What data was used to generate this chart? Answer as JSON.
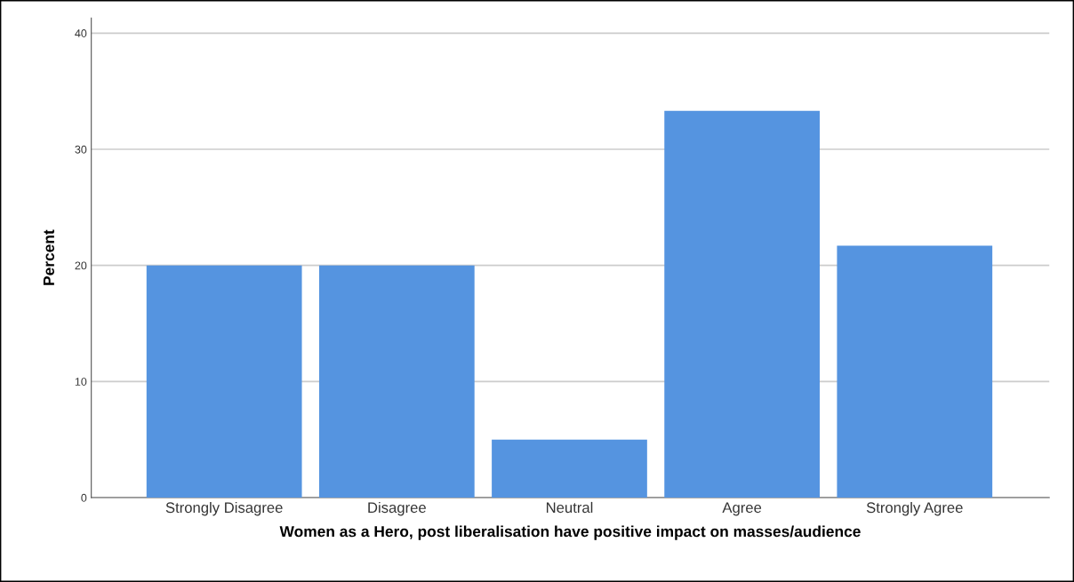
{
  "chart_data": {
    "type": "bar",
    "xlabel": "Women as a Hero, post liberalisation have positive impact on masses/audience",
    "ylabel": "Percent",
    "categories": [
      "Strongly Disagree",
      "Disagree",
      "Neutral",
      "Agree",
      "Strongly Agree"
    ],
    "values": [
      20,
      20,
      5,
      33.3,
      21.7
    ],
    "color": "#5594e0",
    "ylim": [
      0,
      41.3
    ],
    "yticks": [
      0,
      10,
      20,
      30,
      40
    ],
    "grid": "y"
  }
}
